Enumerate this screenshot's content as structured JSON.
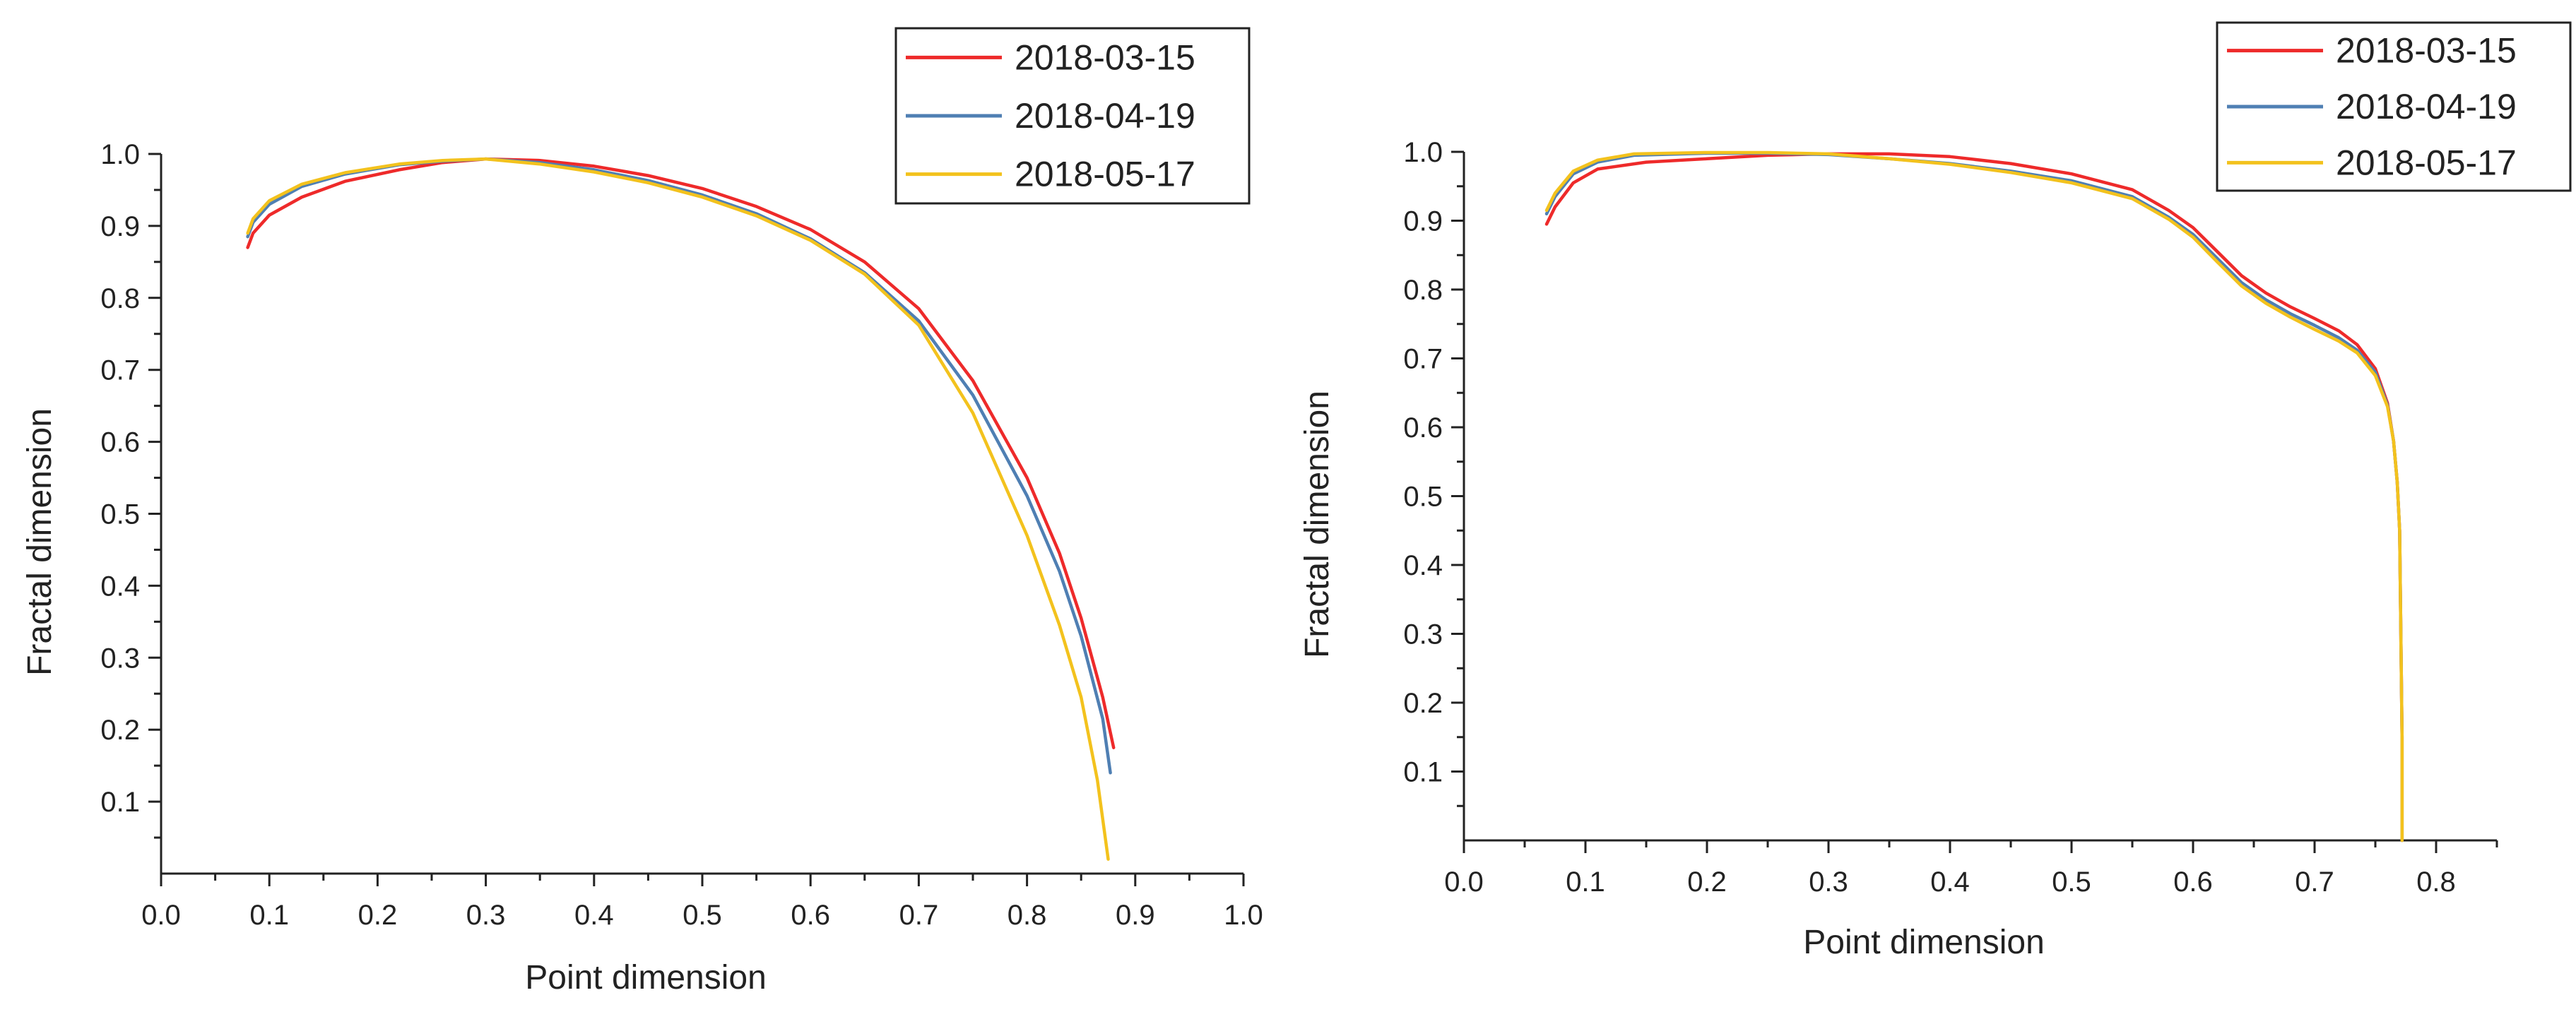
{
  "figure": {
    "description_panels": 2
  },
  "chart_data": [
    {
      "type": "line",
      "title": "",
      "xlabel": "Point dimension",
      "ylabel": "Fractal dimension",
      "xlim": [
        0.0,
        1.0
      ],
      "ylim": [
        0.0,
        1.0
      ],
      "x_ticks": [
        "0.0",
        "0.1",
        "0.2",
        "0.3",
        "0.4",
        "0.5",
        "0.6",
        "0.7",
        "0.8",
        "0.9",
        "1.0"
      ],
      "y_ticks": [
        "0.1",
        "0.2",
        "0.3",
        "0.4",
        "0.5",
        "0.6",
        "0.7",
        "0.8",
        "0.9",
        "1.0"
      ],
      "grid": false,
      "legend": "top-right",
      "series": [
        {
          "name": "2018-03-15",
          "color": "#ee2a2a",
          "points": [
            [
              0.08,
              0.87
            ],
            [
              0.085,
              0.89
            ],
            [
              0.1,
              0.915
            ],
            [
              0.13,
              0.94
            ],
            [
              0.17,
              0.962
            ],
            [
              0.22,
              0.978
            ],
            [
              0.26,
              0.988
            ],
            [
              0.3,
              0.993
            ],
            [
              0.35,
              0.991
            ],
            [
              0.4,
              0.983
            ],
            [
              0.45,
              0.97
            ],
            [
              0.5,
              0.952
            ],
            [
              0.55,
              0.927
            ],
            [
              0.6,
              0.895
            ],
            [
              0.65,
              0.85
            ],
            [
              0.7,
              0.785
            ],
            [
              0.75,
              0.685
            ],
            [
              0.8,
              0.55
            ],
            [
              0.83,
              0.445
            ],
            [
              0.85,
              0.355
            ],
            [
              0.87,
              0.245
            ],
            [
              0.88,
              0.175
            ]
          ]
        },
        {
          "name": "2018-04-19",
          "color": "#4f7fb3",
          "points": [
            [
              0.08,
              0.885
            ],
            [
              0.085,
              0.905
            ],
            [
              0.1,
              0.93
            ],
            [
              0.13,
              0.955
            ],
            [
              0.17,
              0.972
            ],
            [
              0.22,
              0.985
            ],
            [
              0.26,
              0.99
            ],
            [
              0.3,
              0.993
            ],
            [
              0.35,
              0.988
            ],
            [
              0.4,
              0.978
            ],
            [
              0.45,
              0.963
            ],
            [
              0.5,
              0.943
            ],
            [
              0.55,
              0.917
            ],
            [
              0.6,
              0.882
            ],
            [
              0.65,
              0.835
            ],
            [
              0.7,
              0.768
            ],
            [
              0.75,
              0.665
            ],
            [
              0.8,
              0.525
            ],
            [
              0.83,
              0.42
            ],
            [
              0.85,
              0.33
            ],
            [
              0.87,
              0.215
            ],
            [
              0.877,
              0.14
            ]
          ]
        },
        {
          "name": "2018-05-17",
          "color": "#f3c21d",
          "points": [
            [
              0.08,
              0.89
            ],
            [
              0.085,
              0.91
            ],
            [
              0.1,
              0.935
            ],
            [
              0.13,
              0.958
            ],
            [
              0.17,
              0.974
            ],
            [
              0.22,
              0.986
            ],
            [
              0.26,
              0.991
            ],
            [
              0.3,
              0.993
            ],
            [
              0.35,
              0.986
            ],
            [
              0.4,
              0.975
            ],
            [
              0.45,
              0.96
            ],
            [
              0.5,
              0.94
            ],
            [
              0.55,
              0.914
            ],
            [
              0.6,
              0.88
            ],
            [
              0.65,
              0.833
            ],
            [
              0.7,
              0.762
            ],
            [
              0.75,
              0.64
            ],
            [
              0.8,
              0.47
            ],
            [
              0.83,
              0.345
            ],
            [
              0.85,
              0.245
            ],
            [
              0.865,
              0.13
            ],
            [
              0.875,
              0.02
            ]
          ]
        }
      ]
    },
    {
      "type": "line",
      "title": "",
      "xlabel": "Point dimension",
      "ylabel": "Fractal dimension",
      "xlim": [
        0.0,
        0.85
      ],
      "ylim": [
        0.0,
        1.0
      ],
      "x_ticks": [
        "0.0",
        "0.1",
        "0.2",
        "0.3",
        "0.4",
        "0.5",
        "0.6",
        "0.7",
        "0.8"
      ],
      "y_ticks": [
        "0.1",
        "0.2",
        "0.3",
        "0.4",
        "0.5",
        "0.6",
        "0.7",
        "0.8",
        "0.9",
        "1.0"
      ],
      "grid": false,
      "legend": "top-right",
      "series": [
        {
          "name": "2018-03-15",
          "color": "#ee2a2a",
          "points": [
            [
              0.068,
              0.895
            ],
            [
              0.075,
              0.92
            ],
            [
              0.09,
              0.955
            ],
            [
              0.11,
              0.975
            ],
            [
              0.15,
              0.985
            ],
            [
              0.2,
              0.99
            ],
            [
              0.25,
              0.995
            ],
            [
              0.3,
              0.997
            ],
            [
              0.35,
              0.997
            ],
            [
              0.4,
              0.993
            ],
            [
              0.45,
              0.983
            ],
            [
              0.5,
              0.968
            ],
            [
              0.55,
              0.945
            ],
            [
              0.58,
              0.915
            ],
            [
              0.6,
              0.89
            ],
            [
              0.62,
              0.855
            ],
            [
              0.64,
              0.82
            ],
            [
              0.66,
              0.795
            ],
            [
              0.68,
              0.775
            ],
            [
              0.7,
              0.758
            ],
            [
              0.72,
              0.74
            ],
            [
              0.735,
              0.72
            ],
            [
              0.75,
              0.685
            ],
            [
              0.76,
              0.635
            ],
            [
              0.765,
              0.58
            ],
            [
              0.768,
              0.52
            ],
            [
              0.77,
              0.45
            ],
            [
              0.771,
              0.3
            ],
            [
              0.772,
              0.15
            ],
            [
              0.772,
              0.0
            ]
          ]
        },
        {
          "name": "2018-04-19",
          "color": "#4f7fb3",
          "points": [
            [
              0.068,
              0.91
            ],
            [
              0.075,
              0.935
            ],
            [
              0.09,
              0.968
            ],
            [
              0.11,
              0.985
            ],
            [
              0.14,
              0.995
            ],
            [
              0.2,
              0.998
            ],
            [
              0.25,
              0.998
            ],
            [
              0.3,
              0.996
            ],
            [
              0.35,
              0.99
            ],
            [
              0.4,
              0.983
            ],
            [
              0.45,
              0.972
            ],
            [
              0.5,
              0.958
            ],
            [
              0.55,
              0.935
            ],
            [
              0.58,
              0.905
            ],
            [
              0.6,
              0.88
            ],
            [
              0.62,
              0.845
            ],
            [
              0.64,
              0.81
            ],
            [
              0.66,
              0.785
            ],
            [
              0.68,
              0.765
            ],
            [
              0.7,
              0.748
            ],
            [
              0.72,
              0.73
            ],
            [
              0.735,
              0.712
            ],
            [
              0.75,
              0.68
            ],
            [
              0.76,
              0.632
            ],
            [
              0.765,
              0.58
            ],
            [
              0.768,
              0.52
            ],
            [
              0.77,
              0.45
            ],
            [
              0.771,
              0.3
            ],
            [
              0.772,
              0.15
            ],
            [
              0.772,
              0.0
            ]
          ]
        },
        {
          "name": "2018-05-17",
          "color": "#f3c21d",
          "points": [
            [
              0.068,
              0.915
            ],
            [
              0.075,
              0.94
            ],
            [
              0.09,
              0.972
            ],
            [
              0.11,
              0.988
            ],
            [
              0.14,
              0.997
            ],
            [
              0.2,
              0.999
            ],
            [
              0.25,
              0.999
            ],
            [
              0.3,
              0.997
            ],
            [
              0.35,
              0.99
            ],
            [
              0.4,
              0.982
            ],
            [
              0.45,
              0.97
            ],
            [
              0.5,
              0.955
            ],
            [
              0.55,
              0.932
            ],
            [
              0.58,
              0.902
            ],
            [
              0.6,
              0.876
            ],
            [
              0.62,
              0.84
            ],
            [
              0.64,
              0.805
            ],
            [
              0.66,
              0.78
            ],
            [
              0.68,
              0.76
            ],
            [
              0.7,
              0.742
            ],
            [
              0.72,
              0.725
            ],
            [
              0.735,
              0.708
            ],
            [
              0.75,
              0.675
            ],
            [
              0.76,
              0.63
            ],
            [
              0.765,
              0.58
            ],
            [
              0.768,
              0.52
            ],
            [
              0.77,
              0.45
            ],
            [
              0.771,
              0.3
            ],
            [
              0.772,
              0.15
            ],
            [
              0.772,
              0.0
            ]
          ]
        }
      ]
    }
  ]
}
